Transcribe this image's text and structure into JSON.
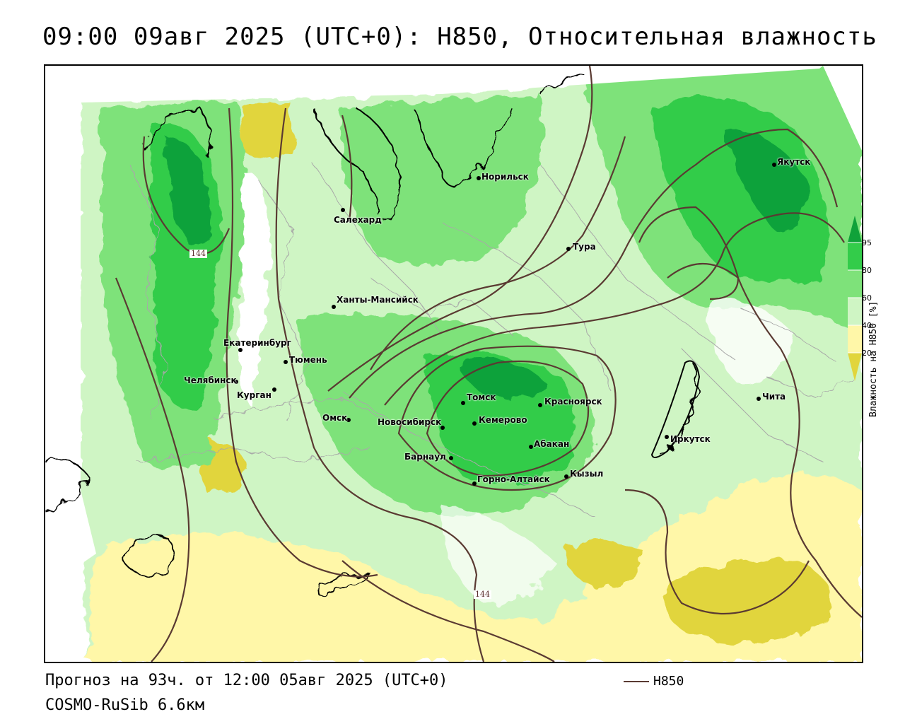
{
  "header": {
    "title": "09:00 09авг 2025 (UTC+0): H850, Относительная влажность"
  },
  "colors": {
    "light_green": "#cff5c4",
    "mid_green": "#7ee27a",
    "green": "#33cc4a",
    "dark_green": "#10a23a",
    "pale_yellow": "#fff7a8",
    "yellow": "#e1d53c",
    "contour": "#5a3a32",
    "coast": "#000000",
    "border": "#a8a8a8"
  },
  "map": {
    "cities": [
      {
        "name": "Норильск"
      },
      {
        "name": "Якутск"
      },
      {
        "name": "Салехард"
      },
      {
        "name": "Тура"
      },
      {
        "name": "Ханты-Мансийск"
      },
      {
        "name": "Екатеринбург"
      },
      {
        "name": "Тюмень"
      },
      {
        "name": "Челябинск"
      },
      {
        "name": "Курган"
      },
      {
        "name": "Омск"
      },
      {
        "name": "Томск"
      },
      {
        "name": "Красноярск"
      },
      {
        "name": "Новосибирск"
      },
      {
        "name": "Кемерово"
      },
      {
        "name": "Барнаул"
      },
      {
        "name": "Абакан"
      },
      {
        "name": "Иркутск"
      },
      {
        "name": "Чита"
      },
      {
        "name": "Кызыл"
      },
      {
        "name": "Горно-Алтайск"
      }
    ],
    "contour_labels": [
      "144",
      "144"
    ]
  },
  "legend": {
    "title": "Влажность на H850 [%]",
    "ticks": [
      "95",
      "80",
      "60",
      "40",
      "20"
    ]
  },
  "footer": {
    "forecast": "Прогноз на 93ч. от 12:00 05авг 2025 (UTC+0)",
    "model": "COSMO-RuSib 6.6км",
    "series_label": "H850"
  }
}
